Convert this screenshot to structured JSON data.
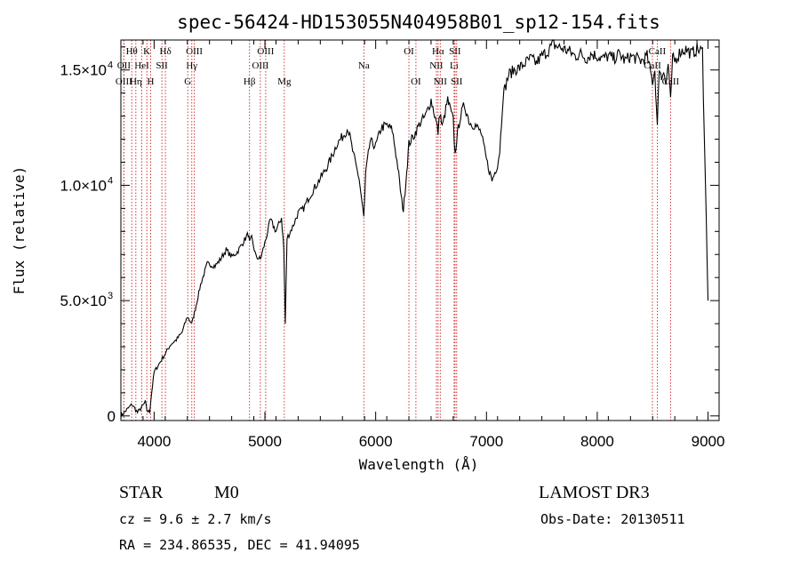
{
  "chart_data": {
    "type": "line",
    "title": "spec-56424-HD153055N404958B01_sp12-154.fits",
    "xlabel": "Wavelength (Å)",
    "ylabel": "Flux (relative)",
    "xlim": [
      3700,
      9100
    ],
    "ylim": [
      -200,
      16300
    ],
    "x_ticks": [
      {
        "value": 4000,
        "label": "4000"
      },
      {
        "value": 5000,
        "label": "5000"
      },
      {
        "value": 6000,
        "label": "6000"
      },
      {
        "value": 7000,
        "label": "7000"
      },
      {
        "value": 8000,
        "label": "8000"
      },
      {
        "value": 9000,
        "label": "9000"
      }
    ],
    "y_ticks": [
      {
        "value": 0,
        "mant": "0",
        "exp": ""
      },
      {
        "value": 5000,
        "mant": "5.0×10",
        "exp": "3"
      },
      {
        "value": 10000,
        "mant": "1.0×10",
        "exp": "4"
      },
      {
        "value": 15000,
        "mant": "1.5×10",
        "exp": "4"
      }
    ],
    "series": [
      {
        "name": "flux",
        "x": [
          3700,
          3760,
          3800,
          3850,
          3900,
          3920,
          3935,
          3960,
          3970,
          4000,
          4050,
          4100,
          4150,
          4200,
          4250,
          4300,
          4340,
          4380,
          4420,
          4480,
          4550,
          4600,
          4650,
          4700,
          4750,
          4800,
          4850,
          4861,
          4880,
          4920,
          4960,
          5000,
          5050,
          5100,
          5150,
          5170,
          5184,
          5200,
          5250,
          5300,
          5350,
          5400,
          5450,
          5500,
          5550,
          5600,
          5650,
          5700,
          5750,
          5800,
          5850,
          5893,
          5910,
          5950,
          6000,
          6050,
          6100,
          6150,
          6200,
          6230,
          6250,
          6280,
          6300,
          6350,
          6400,
          6450,
          6500,
          6540,
          6563,
          6580,
          6600,
          6650,
          6700,
          6716,
          6731,
          6760,
          6800,
          6850,
          6900,
          6950,
          7000,
          7050,
          7100,
          7120,
          7150,
          7200,
          7250,
          7300,
          7350,
          7400,
          7450,
          7500,
          7550,
          7600,
          7650,
          7700,
          7750,
          7800,
          7850,
          7900,
          7950,
          8000,
          8050,
          8100,
          8150,
          8200,
          8250,
          8300,
          8350,
          8400,
          8450,
          8498,
          8520,
          8542,
          8560,
          8580,
          8600,
          8620,
          8640,
          8662,
          8680,
          8700,
          8750,
          8800,
          8850,
          8900,
          8950,
          9000
        ],
        "y": [
          0,
          300,
          500,
          150,
          450,
          600,
          250,
          150,
          700,
          1900,
          2300,
          2700,
          3100,
          3300,
          3600,
          4300,
          4000,
          4800,
          5700,
          6600,
          6500,
          6800,
          7200,
          6900,
          7100,
          7500,
          7900,
          7500,
          7700,
          6900,
          6800,
          7500,
          8500,
          8000,
          8600,
          7300,
          4000,
          7700,
          8200,
          8800,
          9000,
          9500,
          9900,
          10300,
          10700,
          11200,
          11800,
          12100,
          12500,
          11300,
          10300,
          8600,
          10500,
          11900,
          11700,
          12500,
          12600,
          12400,
          10800,
          9500,
          8900,
          10600,
          11800,
          12200,
          12700,
          13000,
          13700,
          12900,
          12300,
          13200,
          12500,
          13700,
          12800,
          11300,
          12000,
          12900,
          13500,
          12700,
          12600,
          12300,
          11100,
          10200,
          10900,
          11500,
          13900,
          14800,
          15000,
          15100,
          15300,
          15500,
          15300,
          15600,
          15800,
          16100,
          16000,
          15900,
          15800,
          15600,
          15700,
          15500,
          15700,
          15600,
          15500,
          15600,
          15500,
          15700,
          15400,
          15600,
          15500,
          15400,
          15600,
          14500,
          15000,
          12500,
          15200,
          14600,
          15100,
          14300,
          15300,
          13600,
          15500,
          15400,
          15800,
          15900,
          15700,
          15900,
          15800,
          5000
        ]
      }
    ],
    "spectral_lines": [
      {
        "label": "Hθ",
        "wl": 3798,
        "row": 1
      },
      {
        "label": "OII",
        "wl": 3727,
        "row": 2
      },
      {
        "label": "OIII",
        "wl": 3727,
        "row": 3
      },
      {
        "label": "HeI",
        "wl": 3889,
        "row": 2
      },
      {
        "label": "Hη",
        "wl": 3835,
        "row": 3
      },
      {
        "label": "K",
        "wl": 3934,
        "row": 1
      },
      {
        "label": "SII",
        "wl": 4070,
        "row": 2
      },
      {
        "label": "H",
        "wl": 3969,
        "row": 3
      },
      {
        "label": "Hδ",
        "wl": 4102,
        "row": 1
      },
      {
        "label": "OIII",
        "wl": 4363,
        "row": 1
      },
      {
        "label": "Hγ",
        "wl": 4340,
        "row": 2
      },
      {
        "label": "G",
        "wl": 4304,
        "row": 3
      },
      {
        "label": "Hβ",
        "wl": 4861,
        "row": 3
      },
      {
        "label": "OIII",
        "wl": 5007,
        "row": 1
      },
      {
        "label": "OIII",
        "wl": 4959,
        "row": 2
      },
      {
        "label": "Mg",
        "wl": 5175,
        "row": 3
      },
      {
        "label": "Na",
        "wl": 5893,
        "row": 2
      },
      {
        "label": "OI",
        "wl": 6300,
        "row": 1
      },
      {
        "label": "OI",
        "wl": 6363,
        "row": 3
      },
      {
        "label": "Hα",
        "wl": 6563,
        "row": 1
      },
      {
        "label": "NII",
        "wl": 6548,
        "row": 2
      },
      {
        "label": "NII",
        "wl": 6583,
        "row": 3
      },
      {
        "label": "SII",
        "wl": 6716,
        "row": 1
      },
      {
        "label": "Li",
        "wl": 6708,
        "row": 2
      },
      {
        "label": "SII",
        "wl": 6731,
        "row": 3
      },
      {
        "label": "CaII",
        "wl": 8542,
        "row": 1
      },
      {
        "label": "CaII",
        "wl": 8498,
        "row": 2
      },
      {
        "label": "CaII",
        "wl": 8662,
        "row": 3
      }
    ],
    "line_color": "#cc2222"
  },
  "info": {
    "class_label": "STAR",
    "subclass": "M0",
    "survey": "LAMOST DR3",
    "cz": "cz = 9.6 ± 2.7 km/s",
    "obs_date": "Obs-Date: 20130511",
    "radec": "RA = 234.86535, DEC =  41.94095"
  }
}
